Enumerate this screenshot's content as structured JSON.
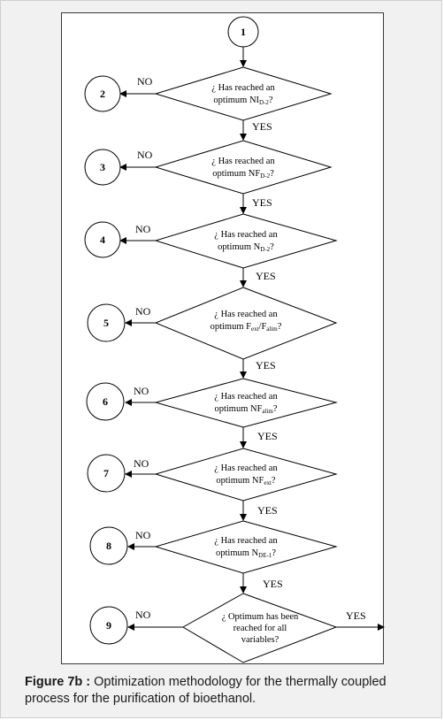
{
  "caption": {
    "label": "Figure 7b :",
    "text": " Optimization methodology for the thermally coupled process for the purification of bioethanol."
  },
  "start_node": {
    "label": "1"
  },
  "steps": [
    {
      "node": "2",
      "line1": "¿ Has reached an",
      "pre": "optimum NI",
      "sub": "D-2",
      "post": "?",
      "yes": "YES",
      "no": "NO"
    },
    {
      "node": "3",
      "line1": "¿ Has reached an",
      "pre": "optimum NF",
      "sub": "D-2",
      "post": "?",
      "yes": "YES",
      "no": "NO"
    },
    {
      "node": "4",
      "line1": "¿ Has reached an",
      "pre": "optimum N",
      "sub": "D-2",
      "post": "?",
      "yes": "YES",
      "no": "NO"
    },
    {
      "node": "5",
      "line1": "¿ Has reached an",
      "pre": "optimum F",
      "sub": "ext",
      "mid": "/F",
      "sub2": "alim",
      "post": "?",
      "yes": "YES",
      "no": "NO"
    },
    {
      "node": "6",
      "line1": "¿ Has reached an",
      "pre": "optimum NF",
      "sub": "alim",
      "post": "?",
      "yes": "YES",
      "no": "NO"
    },
    {
      "node": "7",
      "line1": "¿ Has reached an",
      "pre": "optimum NF",
      "sub": "ext",
      "post": "?",
      "yes": "YES",
      "no": "NO"
    },
    {
      "node": "8",
      "line1": "¿ Has reached an",
      "pre": "optimum N",
      "sub": "DE-1",
      "post": "?",
      "yes": "YES",
      "no": "NO"
    }
  ],
  "final": {
    "node": "9",
    "line1": "¿ Optimum has been",
    "line2": "reached for all",
    "line3": "variables?",
    "yes": "YES",
    "no": "NO"
  }
}
